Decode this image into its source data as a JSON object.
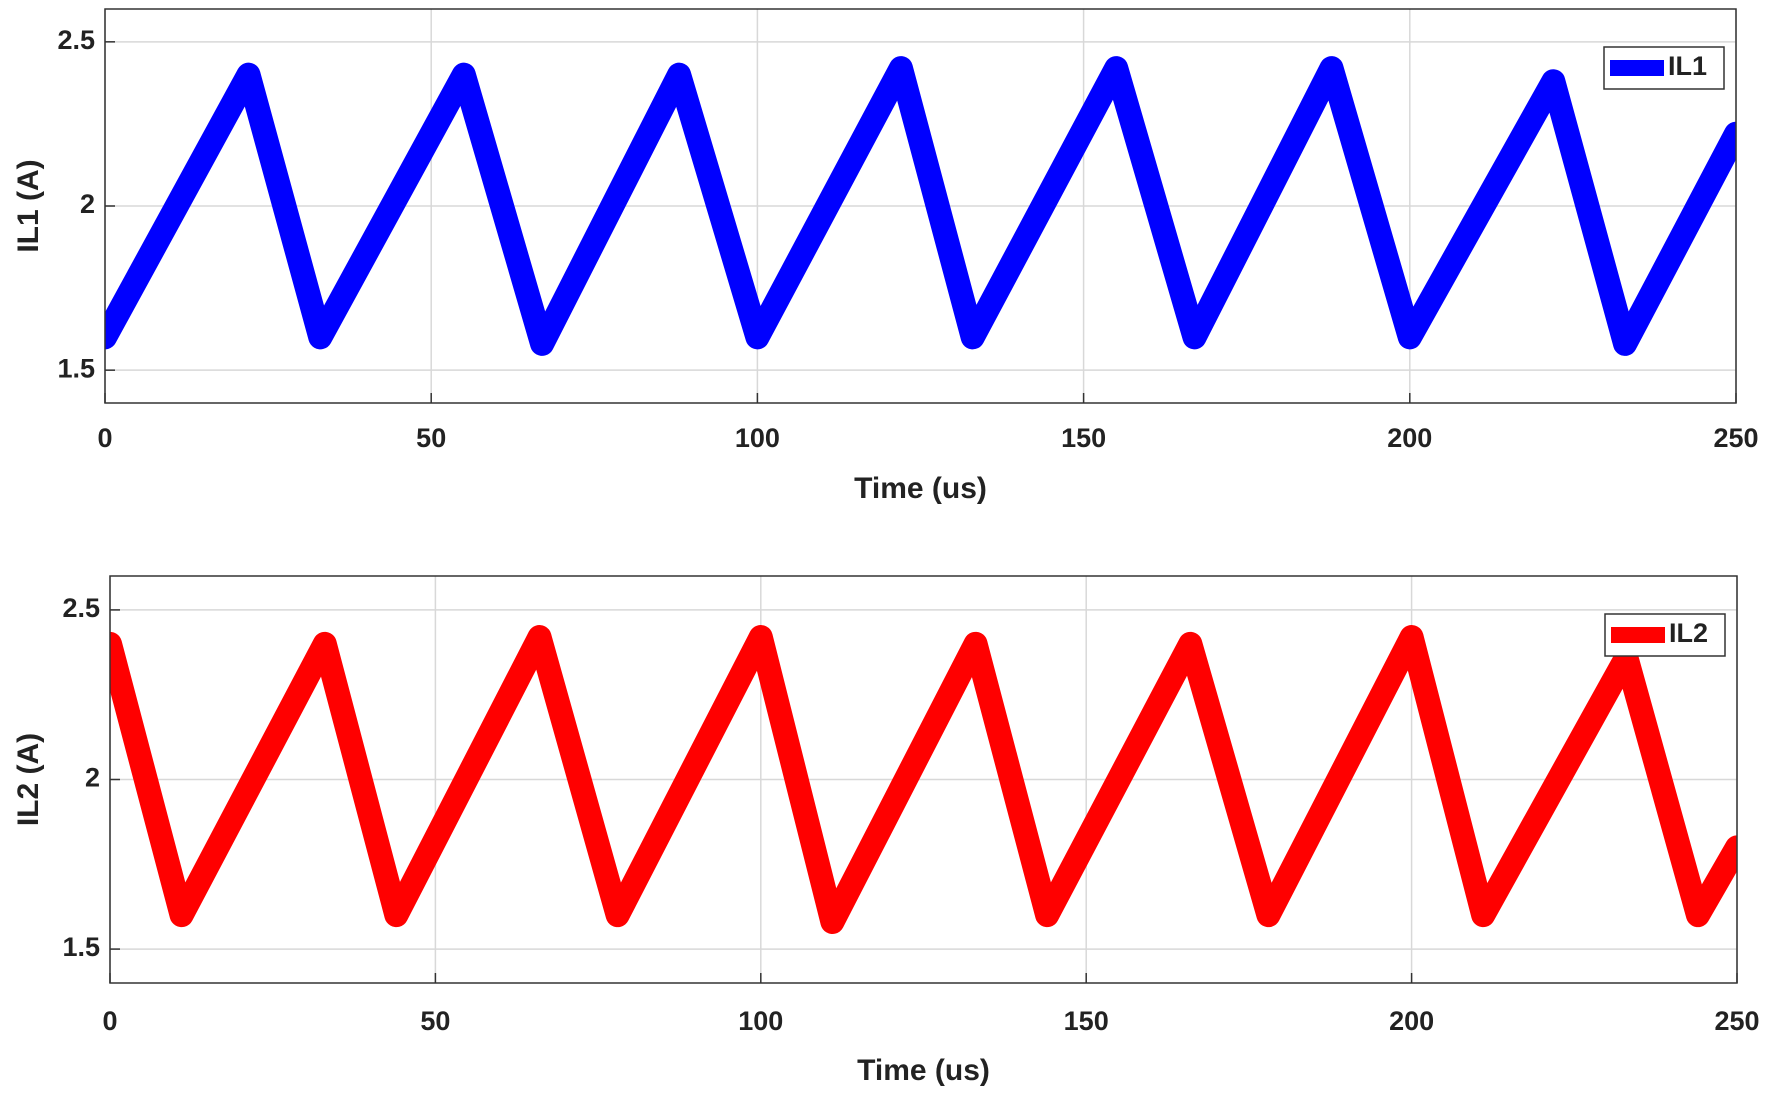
{
  "chart_data": [
    {
      "type": "line",
      "xlabel": "Time (us)",
      "ylabel": "IL1 (A)",
      "x": [
        0,
        22,
        33,
        55,
        67,
        88,
        100,
        122,
        133,
        155,
        167,
        188,
        200,
        222,
        233,
        250
      ],
      "series": [
        {
          "name": "IL1",
          "color": "#0000ff",
          "values": [
            1.6,
            2.4,
            1.6,
            2.4,
            1.58,
            2.4,
            1.6,
            2.42,
            1.6,
            2.42,
            1.6,
            2.42,
            1.6,
            2.38,
            1.58,
            2.22
          ]
        }
      ],
      "xlim": [
        0,
        250
      ],
      "ylim": [
        1.4,
        2.6
      ],
      "xticks": [
        0,
        50,
        100,
        150,
        200,
        250
      ],
      "yticks": [
        1.5,
        2,
        2.5
      ],
      "grid": true,
      "legend": "upper right"
    },
    {
      "type": "line",
      "xlabel": "Time (us)",
      "ylabel": "IL2 (A)",
      "x": [
        0,
        11,
        33,
        44,
        66,
        78,
        100,
        111,
        133,
        144,
        166,
        178,
        200,
        211,
        233,
        244,
        250
      ],
      "series": [
        {
          "name": "IL2",
          "color": "#ff0000",
          "values": [
            2.4,
            1.6,
            2.4,
            1.6,
            2.42,
            1.6,
            2.42,
            1.58,
            2.4,
            1.6,
            2.4,
            1.6,
            2.42,
            1.6,
            2.36,
            1.6,
            1.8
          ]
        }
      ],
      "xlim": [
        0,
        250
      ],
      "ylim": [
        1.4,
        2.6
      ],
      "xticks": [
        0,
        50,
        100,
        150,
        200,
        250
      ],
      "yticks": [
        1.5,
        2,
        2.5
      ],
      "grid": true,
      "legend": "upper right"
    }
  ]
}
